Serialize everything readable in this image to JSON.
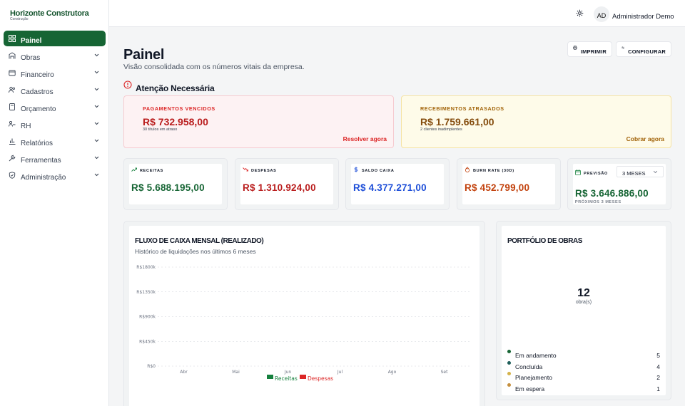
{
  "brand": {
    "name": "Horizonte Construtora",
    "subtitle": "Construção"
  },
  "sidebar": {
    "items": [
      {
        "label": "Painel",
        "icon": "dashboard-icon",
        "active": true
      },
      {
        "label": "Obras",
        "icon": "building-icon"
      },
      {
        "label": "Financeiro",
        "icon": "wallet-icon"
      },
      {
        "label": "Cadastros",
        "icon": "users-icon"
      },
      {
        "label": "Orçamento",
        "icon": "calculator-icon"
      },
      {
        "label": "RH",
        "icon": "user-group-icon"
      },
      {
        "label": "Relatórios",
        "icon": "bar-chart-icon"
      },
      {
        "label": "Ferramentas",
        "icon": "wrench-icon"
      },
      {
        "label": "Administração",
        "icon": "shield-icon"
      }
    ]
  },
  "topbar": {
    "avatar_initials": "AD",
    "user_name": "Administrador Demo"
  },
  "header": {
    "title": "Painel",
    "subtitle": "Visão consolidada com os números vitais da empresa.",
    "print_label": "IMPRIMIR",
    "config_label": "CONFIGURAR"
  },
  "alerts": {
    "title": "Atenção Necessária",
    "overdue_payments": {
      "caption": "PAGAMENTOS VENCIDOS",
      "amount": "R$ 732.958,00",
      "note": "30 títulos em atraso",
      "action": "Resolver agora"
    },
    "overdue_receivables": {
      "caption": "RECEBIMENTOS ATRASADOS",
      "amount": "R$ 1.759.661,00",
      "note": "2 clientes inadimplentes",
      "action": "Cobrar agora"
    }
  },
  "kpis": {
    "receitas": {
      "label": "RECEITAS",
      "value": "R$ 5.688.195,00"
    },
    "despesas": {
      "label": "DESPESAS",
      "value": "R$ 1.310.924,00"
    },
    "saldo": {
      "label": "SALDO CAIXA",
      "value": "R$ 4.377.271,00"
    },
    "burn": {
      "label": "BURN RATE (30D)",
      "value": "R$ 452.799,00"
    },
    "previsao": {
      "label": "PREVISÃO",
      "select": "3 MESES",
      "value": "R$ 3.646.886,00",
      "sub": "PRÓXIMOS 3 MESES"
    }
  },
  "cashflow": {
    "title": "FLUXO DE CAIXA MENSAL (REALIZADO)",
    "subtitle": "Histórico de liquidações nos últimos 6 meses"
  },
  "chart_data": {
    "type": "bar",
    "categories": [
      "Abr",
      "Mai",
      "Jun",
      "Jul",
      "Ago",
      "Set"
    ],
    "series": [
      {
        "name": "Receitas",
        "values": [
          0,
          0,
          0,
          0,
          0,
          0
        ],
        "color": "#15803d"
      },
      {
        "name": "Despesas",
        "values": [
          0,
          0,
          0,
          0,
          0,
          0
        ],
        "color": "#dc2626"
      }
    ],
    "yticks": [
      "R$0",
      "R$450k",
      "R$900k",
      "R$1350k",
      "R$1800k"
    ],
    "ylim": [
      0,
      1800
    ],
    "grid": true,
    "legend": "bottom"
  },
  "portfolio": {
    "title": "PORTFÓLIO DE OBRAS",
    "total": "12",
    "unit": "obra(s)",
    "items": [
      {
        "label": "Em andamento",
        "value": "5",
        "color": "#166534"
      },
      {
        "label": "Concluída",
        "value": "4",
        "color": "#1e5e5a"
      },
      {
        "label": "Planejamento",
        "value": "2",
        "color": "#d4b24a"
      },
      {
        "label": "Em espera",
        "value": "1",
        "color": "#c58f3e"
      }
    ]
  }
}
